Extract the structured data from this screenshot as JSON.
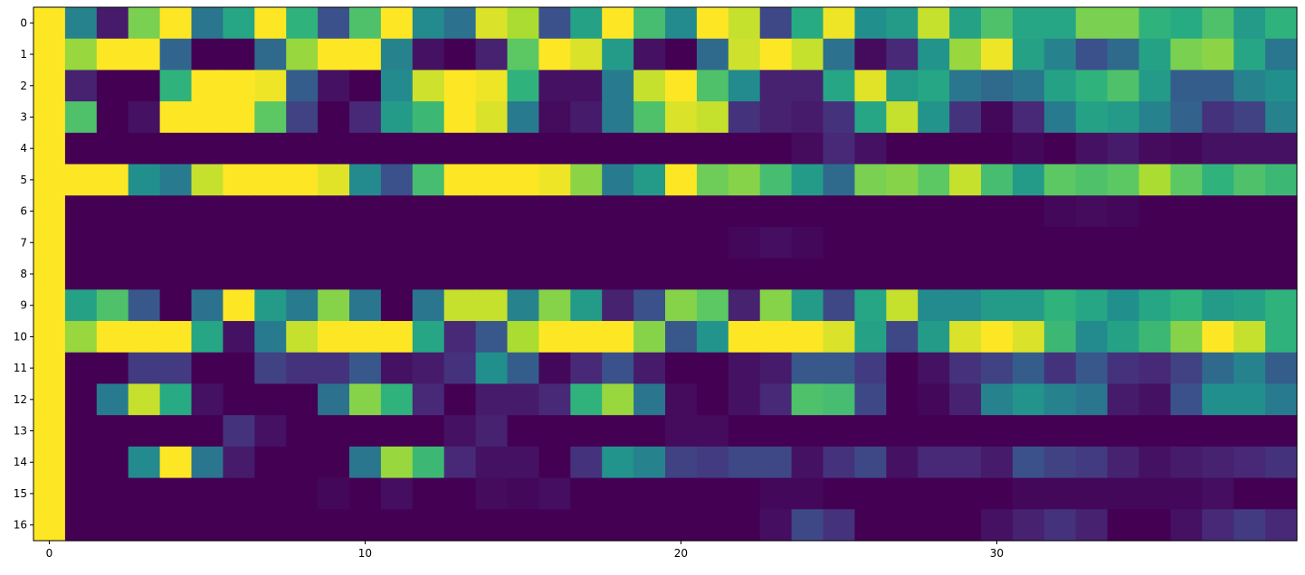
{
  "chart_data": {
    "type": "heatmap",
    "title": "",
    "xlabel": "",
    "ylabel": "",
    "colormap": "viridis",
    "color_range": [
      0,
      1
    ],
    "x_range": [
      -0.5,
      39.5
    ],
    "y_range": [
      -0.5,
      16.5
    ],
    "x_ticks": [
      0,
      10,
      20,
      30
    ],
    "y_ticks": [
      0,
      1,
      2,
      3,
      4,
      5,
      6,
      7,
      8,
      9,
      10,
      11,
      12,
      13,
      14,
      15,
      16
    ],
    "x_tick_labels": [
      "0",
      "10",
      "20",
      "30"
    ],
    "y_tick_labels": [
      "0",
      "1",
      "2",
      "3",
      "4",
      "5",
      "6",
      "7",
      "8",
      "9",
      "10",
      "11",
      "12",
      "13",
      "14",
      "15",
      "16"
    ],
    "grid": false,
    "legend": "none",
    "values": [
      [
        1.0,
        0.45,
        0.08,
        0.8,
        1.0,
        0.4,
        0.6,
        1.0,
        0.65,
        0.25,
        0.72,
        1.0,
        0.48,
        0.38,
        0.95,
        0.88,
        0.25,
        0.58,
        1.0,
        0.7,
        0.48,
        1.0,
        0.92,
        0.22,
        0.62,
        0.98,
        0.5,
        0.55,
        0.92,
        0.58,
        0.72,
        0.6,
        0.6,
        0.8,
        0.8,
        0.65,
        0.62,
        0.72,
        0.55,
        0.65
      ],
      [
        1.0,
        0.85,
        1.0,
        1.0,
        0.33,
        0.0,
        0.0,
        0.35,
        0.85,
        1.0,
        1.0,
        0.45,
        0.05,
        0.0,
        0.1,
        0.75,
        1.0,
        0.95,
        0.55,
        0.05,
        0.0,
        0.35,
        0.93,
        1.0,
        0.92,
        0.38,
        0.03,
        0.12,
        0.52,
        0.85,
        0.98,
        0.58,
        0.45,
        0.25,
        0.35,
        0.58,
        0.8,
        0.83,
        0.6,
        0.4
      ],
      [
        1.0,
        0.1,
        0.0,
        0.0,
        0.65,
        1.0,
        1.0,
        0.98,
        0.3,
        0.05,
        0.0,
        0.48,
        0.93,
        1.0,
        0.98,
        0.65,
        0.05,
        0.05,
        0.42,
        0.92,
        1.0,
        0.72,
        0.48,
        0.1,
        0.1,
        0.6,
        0.96,
        0.55,
        0.6,
        0.4,
        0.35,
        0.4,
        0.58,
        0.65,
        0.72,
        0.55,
        0.3,
        0.3,
        0.45,
        0.5
      ],
      [
        1.0,
        0.72,
        0.0,
        0.05,
        1.0,
        1.0,
        1.0,
        0.75,
        0.2,
        0.0,
        0.12,
        0.55,
        0.68,
        1.0,
        0.95,
        0.42,
        0.03,
        0.08,
        0.42,
        0.72,
        0.95,
        0.92,
        0.15,
        0.1,
        0.08,
        0.15,
        0.6,
        0.92,
        0.52,
        0.15,
        0.02,
        0.12,
        0.42,
        0.58,
        0.55,
        0.45,
        0.32,
        0.15,
        0.2,
        0.45
      ],
      [
        1.0,
        0.0,
        0.0,
        0.0,
        0.0,
        0.0,
        0.0,
        0.0,
        0.0,
        0.0,
        0.0,
        0.0,
        0.0,
        0.0,
        0.0,
        0.0,
        0.0,
        0.0,
        0.0,
        0.0,
        0.0,
        0.0,
        0.0,
        0.0,
        0.03,
        0.12,
        0.05,
        0.0,
        0.0,
        0.0,
        0.0,
        0.02,
        0.0,
        0.05,
        0.08,
        0.03,
        0.02,
        0.05,
        0.05,
        0.05
      ],
      [
        1.0,
        1.0,
        1.0,
        0.5,
        0.42,
        0.92,
        1.0,
        1.0,
        1.0,
        0.96,
        0.48,
        0.25,
        0.7,
        1.0,
        1.0,
        1.0,
        0.98,
        0.83,
        0.42,
        0.55,
        1.0,
        0.78,
        0.82,
        0.7,
        0.55,
        0.35,
        0.8,
        0.82,
        0.75,
        0.92,
        0.7,
        0.55,
        0.75,
        0.72,
        0.75,
        0.88,
        0.75,
        0.65,
        0.72,
        0.68
      ],
      [
        1.0,
        0.0,
        0.0,
        0.0,
        0.0,
        0.0,
        0.0,
        0.0,
        0.0,
        0.0,
        0.0,
        0.0,
        0.0,
        0.0,
        0.0,
        0.0,
        0.0,
        0.0,
        0.0,
        0.0,
        0.0,
        0.0,
        0.0,
        0.0,
        0.0,
        0.0,
        0.0,
        0.0,
        0.0,
        0.0,
        0.0,
        0.0,
        0.02,
        0.03,
        0.02,
        0.0,
        0.0,
        0.0,
        0.0,
        0.0
      ],
      [
        1.0,
        0.0,
        0.0,
        0.0,
        0.0,
        0.0,
        0.0,
        0.0,
        0.0,
        0.0,
        0.0,
        0.0,
        0.0,
        0.0,
        0.0,
        0.0,
        0.0,
        0.0,
        0.0,
        0.0,
        0.0,
        0.0,
        0.02,
        0.04,
        0.02,
        0.0,
        0.0,
        0.0,
        0.0,
        0.0,
        0.0,
        0.0,
        0.0,
        0.0,
        0.0,
        0.0,
        0.0,
        0.0,
        0.0,
        0.0
      ],
      [
        1.0,
        0.0,
        0.0,
        0.0,
        0.0,
        0.0,
        0.0,
        0.0,
        0.0,
        0.0,
        0.0,
        0.0,
        0.0,
        0.0,
        0.0,
        0.0,
        0.0,
        0.0,
        0.0,
        0.0,
        0.0,
        0.0,
        0.0,
        0.0,
        0.0,
        0.0,
        0.0,
        0.0,
        0.0,
        0.0,
        0.0,
        0.0,
        0.0,
        0.0,
        0.0,
        0.0,
        0.0,
        0.0,
        0.0,
        0.0
      ],
      [
        1.0,
        0.58,
        0.72,
        0.28,
        0.0,
        0.38,
        1.0,
        0.55,
        0.42,
        0.82,
        0.4,
        0.0,
        0.4,
        0.92,
        0.92,
        0.45,
        0.82,
        0.55,
        0.1,
        0.25,
        0.82,
        0.75,
        0.1,
        0.82,
        0.55,
        0.22,
        0.6,
        0.92,
        0.48,
        0.48,
        0.55,
        0.55,
        0.65,
        0.6,
        0.5,
        0.6,
        0.65,
        0.55,
        0.58,
        0.65
      ],
      [
        1.0,
        0.85,
        1.0,
        1.0,
        1.0,
        0.6,
        0.05,
        0.42,
        0.92,
        1.0,
        1.0,
        1.0,
        0.6,
        0.12,
        0.28,
        0.88,
        1.0,
        1.0,
        1.0,
        0.82,
        0.28,
        0.52,
        1.0,
        1.0,
        1.0,
        0.95,
        0.58,
        0.22,
        0.55,
        0.95,
        1.0,
        0.95,
        0.68,
        0.48,
        0.58,
        0.68,
        0.82,
        1.0,
        0.92,
        0.65
      ],
      [
        1.0,
        0.0,
        0.0,
        0.18,
        0.18,
        0.0,
        0.0,
        0.2,
        0.15,
        0.15,
        0.28,
        0.05,
        0.08,
        0.15,
        0.5,
        0.3,
        0.02,
        0.12,
        0.25,
        0.08,
        0.0,
        0.0,
        0.05,
        0.08,
        0.28,
        0.28,
        0.18,
        0.0,
        0.05,
        0.15,
        0.2,
        0.3,
        0.15,
        0.28,
        0.15,
        0.12,
        0.2,
        0.35,
        0.45,
        0.3
      ],
      [
        1.0,
        0.0,
        0.42,
        0.92,
        0.62,
        0.05,
        0.0,
        0.0,
        0.0,
        0.38,
        0.82,
        0.65,
        0.12,
        0.0,
        0.08,
        0.08,
        0.12,
        0.65,
        0.85,
        0.4,
        0.03,
        0.0,
        0.05,
        0.12,
        0.72,
        0.7,
        0.22,
        0.0,
        0.02,
        0.1,
        0.45,
        0.52,
        0.45,
        0.4,
        0.08,
        0.05,
        0.25,
        0.5,
        0.5,
        0.42
      ],
      [
        1.0,
        0.0,
        0.0,
        0.0,
        0.0,
        0.0,
        0.15,
        0.05,
        0.0,
        0.0,
        0.0,
        0.0,
        0.0,
        0.05,
        0.1,
        0.0,
        0.0,
        0.0,
        0.0,
        0.0,
        0.03,
        0.03,
        0.0,
        0.0,
        0.0,
        0.0,
        0.0,
        0.0,
        0.0,
        0.0,
        0.0,
        0.0,
        0.0,
        0.0,
        0.0,
        0.0,
        0.0,
        0.0,
        0.0,
        0.0
      ],
      [
        1.0,
        0.0,
        0.0,
        0.48,
        1.0,
        0.4,
        0.08,
        0.0,
        0.0,
        0.0,
        0.4,
        0.85,
        0.68,
        0.12,
        0.05,
        0.05,
        0.0,
        0.15,
        0.52,
        0.45,
        0.2,
        0.18,
        0.22,
        0.22,
        0.05,
        0.15,
        0.22,
        0.05,
        0.12,
        0.12,
        0.08,
        0.25,
        0.2,
        0.18,
        0.1,
        0.05,
        0.08,
        0.1,
        0.12,
        0.15
      ],
      [
        1.0,
        0.0,
        0.0,
        0.0,
        0.0,
        0.0,
        0.0,
        0.0,
        0.0,
        0.02,
        0.0,
        0.04,
        0.0,
        0.0,
        0.03,
        0.02,
        0.04,
        0.0,
        0.0,
        0.0,
        0.0,
        0.0,
        0.0,
        0.02,
        0.02,
        0.0,
        0.0,
        0.0,
        0.0,
        0.0,
        0.0,
        0.02,
        0.02,
        0.02,
        0.02,
        0.02,
        0.02,
        0.04,
        0.0,
        0.0
      ],
      [
        1.0,
        0.0,
        0.0,
        0.0,
        0.0,
        0.0,
        0.0,
        0.0,
        0.0,
        0.0,
        0.0,
        0.0,
        0.0,
        0.0,
        0.0,
        0.0,
        0.0,
        0.0,
        0.0,
        0.0,
        0.0,
        0.0,
        0.0,
        0.04,
        0.22,
        0.15,
        0.0,
        0.0,
        0.0,
        0.0,
        0.05,
        0.1,
        0.15,
        0.1,
        0.0,
        0.0,
        0.05,
        0.12,
        0.18,
        0.12
      ]
    ]
  }
}
